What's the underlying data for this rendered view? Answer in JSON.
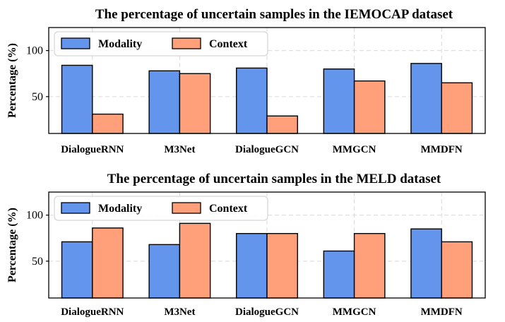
{
  "colors": {
    "modality": "#6495ED",
    "context": "#FFA07A"
  },
  "chart_data": [
    {
      "type": "bar",
      "title": "The percentage of uncertain samples in the IEMOCAP dataset",
      "ylabel": "Percentage (%)",
      "xlabel": "",
      "ylim": [
        10,
        125
      ],
      "yticks": [
        50,
        100
      ],
      "grid": true,
      "legend_position": "top-left",
      "categories": [
        "DialogueRNN",
        "M3Net",
        "DialogueGCN",
        "MMGCN",
        "MMDFN"
      ],
      "series": [
        {
          "name": "Modality",
          "values": [
            84,
            78,
            81,
            80,
            86
          ]
        },
        {
          "name": "Context",
          "values": [
            31,
            75,
            29,
            67,
            65
          ]
        }
      ]
    },
    {
      "type": "bar",
      "title": "The percentage of uncertain samples in the MELD dataset",
      "ylabel": "Percentage (%)",
      "xlabel": "",
      "ylim": [
        10,
        125
      ],
      "yticks": [
        50,
        100
      ],
      "grid": true,
      "legend_position": "top-left",
      "categories": [
        "DialogueRNN",
        "M3Net",
        "DialogueGCN",
        "MMGCN",
        "MMDFN"
      ],
      "series": [
        {
          "name": "Modality",
          "values": [
            71,
            68,
            80,
            61,
            85
          ]
        },
        {
          "name": "Context",
          "values": [
            86,
            91,
            80,
            80,
            71
          ]
        }
      ]
    }
  ]
}
